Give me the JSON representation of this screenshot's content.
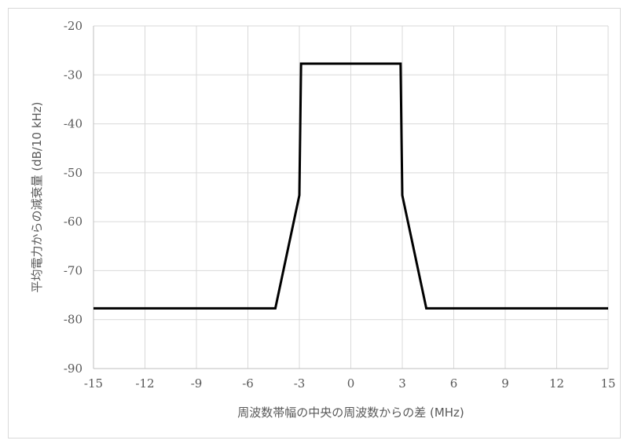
{
  "chart_data": {
    "type": "line",
    "xlabel": "周波数帯幅の中央の周波数からの差 (MHz)",
    "ylabel": "平均電力からの減衰量 (dB/10 kHz)",
    "xlim": [
      -15,
      15
    ],
    "ylim": [
      -90,
      -20
    ],
    "xticks": [
      -15,
      -12,
      -9,
      -6,
      -3,
      0,
      3,
      6,
      9,
      12,
      15
    ],
    "yticks": [
      -20,
      -30,
      -40,
      -50,
      -60,
      -70,
      -80,
      -90
    ],
    "x_tick_labels": [
      "-15",
      "-12",
      "-9",
      "-6",
      "-3",
      "0",
      "3",
      "6",
      "9",
      "12",
      "15"
    ],
    "y_tick_labels": [
      "-20",
      "-30",
      "-40",
      "-50",
      "-60",
      "-70",
      "-80",
      "-90"
    ],
    "grid": true,
    "series": [
      {
        "color": "#000000",
        "points": [
          {
            "x": -15,
            "y": -77.7
          },
          {
            "x": -4.4,
            "y": -77.7
          },
          {
            "x": -3.0,
            "y": -54.6
          },
          {
            "x": -2.9,
            "y": -27.7
          },
          {
            "x": 2.9,
            "y": -27.7
          },
          {
            "x": 3.0,
            "y": -54.6
          },
          {
            "x": 4.4,
            "y": -77.7
          },
          {
            "x": 15,
            "y": -77.7
          }
        ]
      }
    ]
  }
}
